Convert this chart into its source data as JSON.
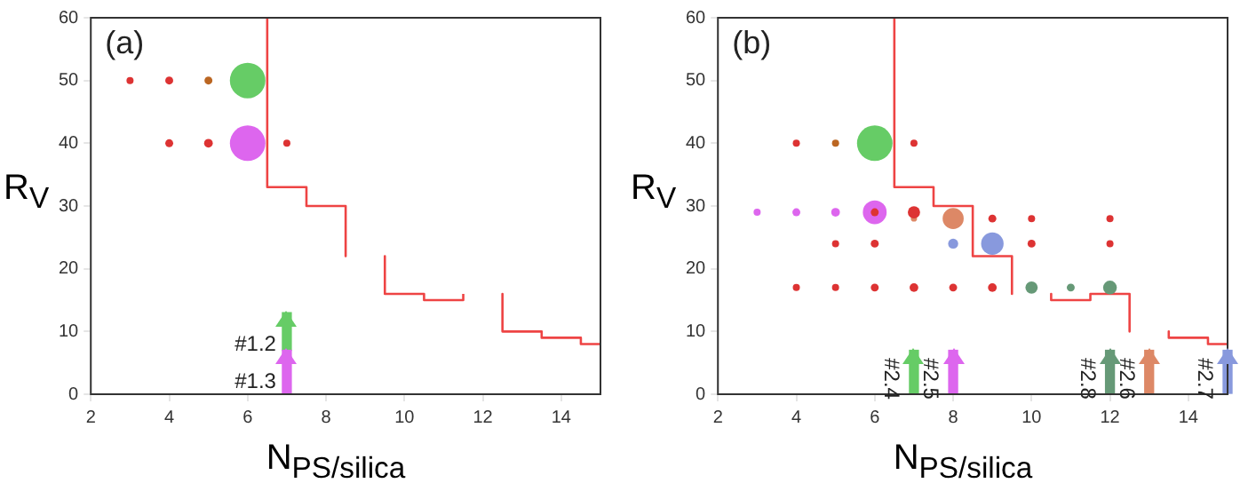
{
  "chart_data": [
    {
      "type": "bubble",
      "title": "(a)",
      "xlabel": "N$_{PS/silica}$",
      "ylabel": "R$_{V}$",
      "xlim": [
        2,
        15
      ],
      "xticks": [
        2,
        4,
        6,
        8,
        10,
        12,
        14
      ],
      "ylim": [
        0,
        60
      ],
      "yticks": [
        0,
        10,
        20,
        30,
        40,
        50,
        60
      ],
      "legend": false,
      "annotations": [
        {
          "text": "#1.2",
          "x": 7,
          "y": 13
        },
        {
          "text": "#1.3",
          "x": 7,
          "y": 7
        }
      ],
      "series": [
        {
          "color": "#dd3333",
          "x": [
            3,
            4,
            4,
            5,
            7
          ],
          "values": [
            50,
            50,
            40,
            40,
            40
          ],
          "sizes": [
            0.04,
            0.05,
            0.05,
            0.06,
            0.04
          ]
        },
        {
          "color": "#bb6622",
          "x": [
            5
          ],
          "values": [
            50
          ],
          "sizes": [
            0.05
          ]
        },
        {
          "color": "#66cc66",
          "x": [
            6
          ],
          "values": [
            50
          ],
          "sizes": [
            1
          ]
        },
        {
          "color": "#dd66ee",
          "x": [
            6
          ],
          "values": [
            40
          ],
          "sizes": [
            1
          ]
        },
        {
          "type": "line",
          "color": "#ee4444",
          "x": [
            6.5,
            6.5,
            7.5,
            7.5,
            8.5,
            8.5,
            9,
            9.5,
            9.5,
            10.5,
            10.5,
            11.5,
            11.5,
            12,
            12.5,
            12.5,
            13.5,
            13.5,
            14.5,
            14.5,
            15
          ],
          "values": [
            60,
            33,
            33,
            30,
            30,
            22,
            null,
            22,
            16,
            16,
            15,
            15,
            16,
            null,
            16,
            10,
            10,
            9,
            9,
            8,
            8
          ]
        },
        {
          "type": "bar",
          "color": "#dd66ee",
          "x": [
            7
          ],
          "values": [
            7
          ]
        },
        {
          "type": "bar",
          "color": "#66cc66",
          "x": [
            7
          ],
          "values": [
            6
          ]
        }
      ],
      "stacked": true
    },
    {
      "type": "bubble",
      "title": "(b)",
      "xlabel": "N$_{PS/silica}$",
      "ylabel": "R$_{V}$",
      "xlim": [
        2,
        15
      ],
      "xticks": [
        2,
        4,
        6,
        8,
        10,
        12,
        14
      ],
      "ylim": [
        0,
        60
      ],
      "yticks": [
        0,
        10,
        20,
        30,
        40,
        50,
        60
      ],
      "legend": false,
      "annotations": [
        {
          "text": "#2.4",
          "x": 7,
          "y": 7
        },
        {
          "text": "#2.5",
          "x": 8,
          "y": 7
        },
        {
          "text": "#2.8",
          "x": 12,
          "y": 7
        },
        {
          "text": "#2.6",
          "x": 13,
          "y": 7
        },
        {
          "text": "#2.7",
          "x": 15,
          "y": 7
        }
      ],
      "series": [
        {
          "color": "#dd3333",
          "x": [
            4,
            7,
            6,
            5,
            6,
            7,
            10,
            12,
            4,
            5,
            6,
            7,
            8,
            9,
            9,
            10,
            12
          ],
          "values": [
            40,
            40,
            24,
            24,
            29,
            29,
            24,
            24,
            17,
            17,
            17,
            17,
            17,
            17,
            28,
            28,
            28
          ],
          "sizes": [
            0.04,
            0.04,
            0.05,
            0.04,
            0.05,
            0.12,
            0.05,
            0.04,
            0.04,
            0.04,
            0.05,
            0.06,
            0.05,
            0.06,
            0.05,
            0.04,
            0.04
          ]
        },
        {
          "color": "#bb6622",
          "x": [
            5
          ],
          "values": [
            40
          ],
          "sizes": [
            0.04
          ]
        },
        {
          "color": "#66cc66",
          "x": [
            6
          ],
          "values": [
            40
          ],
          "sizes": [
            1
          ]
        },
        {
          "color": "#dd66ee",
          "x": [
            3,
            4,
            5,
            6
          ],
          "values": [
            29,
            29,
            29,
            29
          ],
          "sizes": [
            0.04,
            0.05,
            0.06,
            0.45
          ]
        },
        {
          "color": "#dd8866",
          "x": [
            7,
            8
          ],
          "values": [
            28,
            28
          ],
          "sizes": [
            0.03,
            0.35
          ]
        },
        {
          "color": "#8899dd",
          "x": [
            8,
            9
          ],
          "values": [
            24,
            24
          ],
          "sizes": [
            0.08,
            0.4
          ]
        },
        {
          "color": "#669977",
          "x": [
            10,
            11,
            12
          ],
          "values": [
            17,
            17,
            17
          ],
          "sizes": [
            0.12,
            0.05,
            0.15
          ]
        },
        {
          "type": "line",
          "color": "#ee4444",
          "x": [
            6.5,
            6.5,
            7.5,
            7.5,
            8.5,
            8.5,
            9.5,
            9.5,
            10,
            10.5,
            10.5,
            11.5,
            11.5,
            12.5,
            12.5,
            13,
            13.5,
            13.5,
            14.5,
            14.5,
            15
          ],
          "values": [
            60,
            33,
            33,
            30,
            30,
            22,
            22,
            16,
            null,
            16,
            15,
            15,
            16,
            16,
            10,
            null,
            10,
            9,
            9,
            8,
            8
          ]
        },
        {
          "type": "bar",
          "color": "#66cc66",
          "x": [
            7
          ],
          "values": [
            7
          ]
        },
        {
          "type": "bar",
          "color": "#dd66ee",
          "x": [
            8
          ],
          "values": [
            7
          ]
        },
        {
          "type": "bar",
          "color": "#669977",
          "x": [
            12
          ],
          "values": [
            7
          ]
        },
        {
          "type": "bar",
          "color": "#dd8866",
          "x": [
            13
          ],
          "values": [
            7
          ]
        },
        {
          "type": "bar",
          "color": "#8899dd",
          "x": [
            15
          ],
          "values": [
            7
          ]
        }
      ]
    }
  ]
}
